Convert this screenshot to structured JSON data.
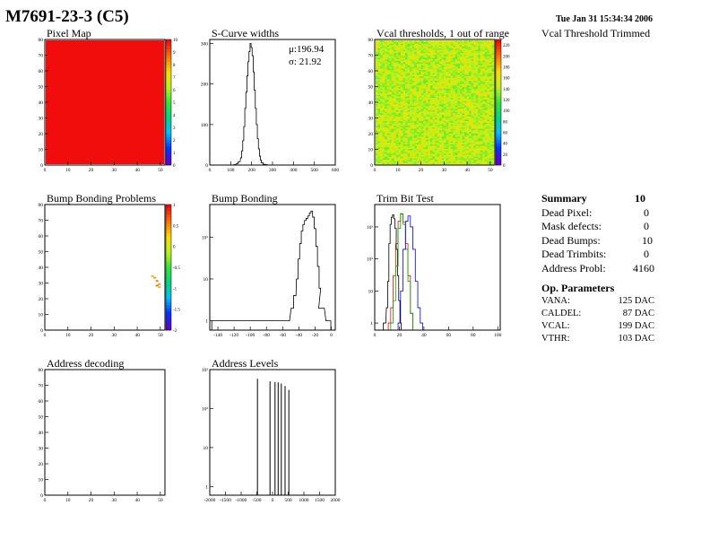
{
  "header": {
    "title": "M7691-23-3 (C5)",
    "date": "Tue Jan 31 15:34:34 2006"
  },
  "chart_data": [
    {
      "type": "heatmap",
      "title": "Pixel Map",
      "x_ticks": [
        "0",
        "10",
        "20",
        "30",
        "40",
        "50"
      ],
      "y_ticks": [
        "0",
        "10",
        "20",
        "30",
        "40",
        "50",
        "60",
        "70",
        "80"
      ],
      "xlim": [
        0,
        52
      ],
      "ylim": [
        0,
        80
      ],
      "z_ticks": [
        "0",
        "1",
        "2",
        "3",
        "4",
        "5",
        "6",
        "7",
        "8",
        "9",
        "10"
      ],
      "zlim": [
        0,
        10
      ],
      "fill_value": 10
    },
    {
      "type": "histogram",
      "title": "S-Curve widths",
      "x_ticks": [
        "0",
        "100",
        "200",
        "300",
        "400",
        "500",
        "600"
      ],
      "y_ticks": [
        "0",
        "100",
        "200",
        "300"
      ],
      "xlim": [
        0,
        600
      ],
      "ylim": [
        0,
        310
      ],
      "stats": {
        "mu": "μ:196.94",
        "sigma": "σ: 21.92"
      },
      "bins": [
        [
          120,
          1
        ],
        [
          130,
          3
        ],
        [
          140,
          8
        ],
        [
          150,
          18
        ],
        [
          155,
          35
        ],
        [
          160,
          60
        ],
        [
          165,
          95
        ],
        [
          170,
          140
        ],
        [
          175,
          180
        ],
        [
          180,
          220
        ],
        [
          185,
          255
        ],
        [
          190,
          280
        ],
        [
          195,
          300
        ],
        [
          200,
          290
        ],
        [
          205,
          270
        ],
        [
          210,
          230
        ],
        [
          215,
          185
        ],
        [
          220,
          140
        ],
        [
          225,
          100
        ],
        [
          230,
          65
        ],
        [
          235,
          40
        ],
        [
          240,
          22
        ],
        [
          245,
          12
        ],
        [
          250,
          6
        ],
        [
          260,
          2
        ],
        [
          270,
          1
        ]
      ]
    },
    {
      "type": "heatmap",
      "title": "Vcal thresholds, 1 out of range",
      "x_ticks": [
        "0",
        "10",
        "20",
        "30",
        "40",
        "50"
      ],
      "y_ticks": [
        "0",
        "10",
        "20",
        "30",
        "40",
        "50",
        "60",
        "70",
        "80"
      ],
      "xlim": [
        0,
        52
      ],
      "ylim": [
        0,
        80
      ],
      "z_ticks": [
        "0",
        "20",
        "40",
        "60",
        "80",
        "100",
        "120",
        "140",
        "160",
        "180",
        "200",
        "220"
      ],
      "zlim": [
        0,
        230
      ],
      "mean_value": 145
    },
    {
      "type": "heatmap",
      "title": "Bump Bonding Problems",
      "x_ticks": [
        "0",
        "10",
        "20",
        "30",
        "40",
        "50"
      ],
      "y_ticks": [
        "0",
        "10",
        "20",
        "30",
        "40",
        "50",
        "60",
        "70",
        "80"
      ],
      "xlim": [
        0,
        52
      ],
      "ylim": [
        0,
        80
      ],
      "z_ticks": [
        "-2",
        "-1.5",
        "-1",
        "-0.5",
        "0",
        "0.5",
        "1"
      ],
      "zlim": [
        -2,
        1
      ],
      "cells": [
        [
          46,
          34,
          0.4
        ],
        [
          47,
          33,
          0.5
        ],
        [
          48,
          31,
          0.6
        ],
        [
          49,
          29,
          0.5
        ],
        [
          48,
          28,
          0.7
        ],
        [
          49,
          27,
          0.4
        ]
      ]
    },
    {
      "type": "histogram",
      "title": "Bump Bonding",
      "scale": "log",
      "x_ticks": [
        "-140",
        "-120",
        "-100",
        "-80",
        "-60",
        "-40",
        "-20",
        "0"
      ],
      "y_ticks": [
        "1",
        "10",
        "10²"
      ],
      "xlim": [
        -150,
        5
      ],
      "ylim": [
        0.6,
        600
      ],
      "bins": [
        [
          -145,
          1
        ],
        [
          -140,
          1
        ],
        [
          -137,
          1
        ],
        [
          -132,
          1
        ],
        [
          -120,
          1
        ],
        [
          -110,
          1
        ],
        [
          -95,
          1
        ],
        [
          -78,
          1
        ],
        [
          -70,
          1
        ],
        [
          -55,
          1
        ],
        [
          -48,
          2
        ],
        [
          -45,
          4
        ],
        [
          -42,
          10
        ],
        [
          -40,
          30
        ],
        [
          -38,
          70
        ],
        [
          -36,
          140
        ],
        [
          -34,
          200
        ],
        [
          -32,
          250
        ],
        [
          -30,
          280
        ],
        [
          -28,
          320
        ],
        [
          -26,
          380
        ],
        [
          -24,
          420
        ],
        [
          -22,
          300
        ],
        [
          -20,
          160
        ],
        [
          -18,
          60
        ],
        [
          -16,
          20
        ],
        [
          -14,
          6
        ],
        [
          -12,
          2
        ],
        [
          -5,
          1
        ],
        [
          -2,
          1
        ]
      ]
    },
    {
      "type": "histogram",
      "title": "Trim Bit Test",
      "scale": "log",
      "x_ticks": [
        "0",
        "20",
        "40",
        "60",
        "80",
        "100"
      ],
      "y_ticks": [
        "1",
        "10",
        "10²",
        "10³"
      ],
      "xlim": [
        0,
        102
      ],
      "ylim": [
        0.6,
        5000
      ],
      "series": [
        {
          "color": "#000000",
          "bins": [
            [
              8,
              1
            ],
            [
              10,
              3
            ],
            [
              11,
              20
            ],
            [
              12,
              300
            ],
            [
              13,
              1200
            ],
            [
              14,
              2000
            ],
            [
              15,
              2400
            ],
            [
              16,
              1800
            ],
            [
              17,
              900
            ],
            [
              18,
              200
            ],
            [
              19,
              30
            ],
            [
              20,
              5
            ],
            [
              21,
              1
            ]
          ]
        },
        {
          "color": "#ff0000",
          "bins": [
            [
              12,
              1
            ],
            [
              14,
              3
            ],
            [
              16,
              30
            ],
            [
              18,
              300
            ],
            [
              20,
              1500
            ],
            [
              22,
              2500
            ],
            [
              24,
              1400
            ],
            [
              26,
              300
            ],
            [
              28,
              30
            ],
            [
              30,
              2
            ]
          ]
        },
        {
          "color": "#00aa00",
          "bins": [
            [
              14,
              1
            ],
            [
              16,
              5
            ],
            [
              18,
              60
            ],
            [
              20,
              900
            ],
            [
              22,
              2600
            ],
            [
              24,
              1200
            ],
            [
              26,
              200
            ],
            [
              28,
              20
            ],
            [
              30,
              2
            ]
          ]
        },
        {
          "color": "#0000ff",
          "bins": [
            [
              20,
              1
            ],
            [
              22,
              10
            ],
            [
              24,
              200
            ],
            [
              26,
              1500
            ],
            [
              28,
              2200
            ],
            [
              30,
              1000
            ],
            [
              32,
              200
            ],
            [
              34,
              20
            ],
            [
              36,
              3
            ],
            [
              38,
              1
            ]
          ]
        }
      ]
    },
    {
      "type": "heatmap",
      "title": "Address decoding",
      "x_ticks": [
        "0",
        "10",
        "20",
        "30",
        "40",
        "50"
      ],
      "y_ticks": [
        "0",
        "10",
        "20",
        "30",
        "40",
        "50",
        "60",
        "70",
        "80"
      ],
      "xlim": [
        0,
        52
      ],
      "ylim": [
        0,
        80
      ],
      "empty": true
    },
    {
      "type": "histogram",
      "title": "Address Levels",
      "scale": "log",
      "x_ticks": [
        "-2000",
        "-1500",
        "-1000",
        "-500",
        "0",
        "500",
        "1000",
        "1500",
        "2000"
      ],
      "y_ticks": [
        "1",
        "10",
        "10²",
        "10³"
      ],
      "xlim": [
        -2000,
        2000
      ],
      "ylim": [
        0.6,
        1000
      ],
      "bins": [
        [
          -480,
          580
        ],
        [
          -80,
          500
        ],
        [
          80,
          480
        ],
        [
          180,
          470
        ],
        [
          280,
          440
        ],
        [
          400,
          380
        ],
        [
          520,
          300
        ]
      ]
    }
  ],
  "extra": {
    "vcal_trimmed_title": "Vcal Threshold Trimmed"
  },
  "summary": {
    "title": "Summary",
    "count": "10",
    "rows": [
      {
        "label": "Dead Pixel:",
        "value": "0"
      },
      {
        "label": "Mask defects:",
        "value": "0"
      },
      {
        "label": "Dead Bumps:",
        "value": "10"
      },
      {
        "label": "Dead Trimbits:",
        "value": "0"
      },
      {
        "label": "Address Probl:",
        "value": "4160"
      }
    ],
    "op_title": "Op. Parameters",
    "op_rows": [
      {
        "label": "VANA:",
        "value": "125 DAC"
      },
      {
        "label": "CALDEL:",
        "value": "87 DAC"
      },
      {
        "label": "VCAL:",
        "value": "199 DAC"
      },
      {
        "label": "VTHR:",
        "value": "103 DAC"
      }
    ]
  }
}
